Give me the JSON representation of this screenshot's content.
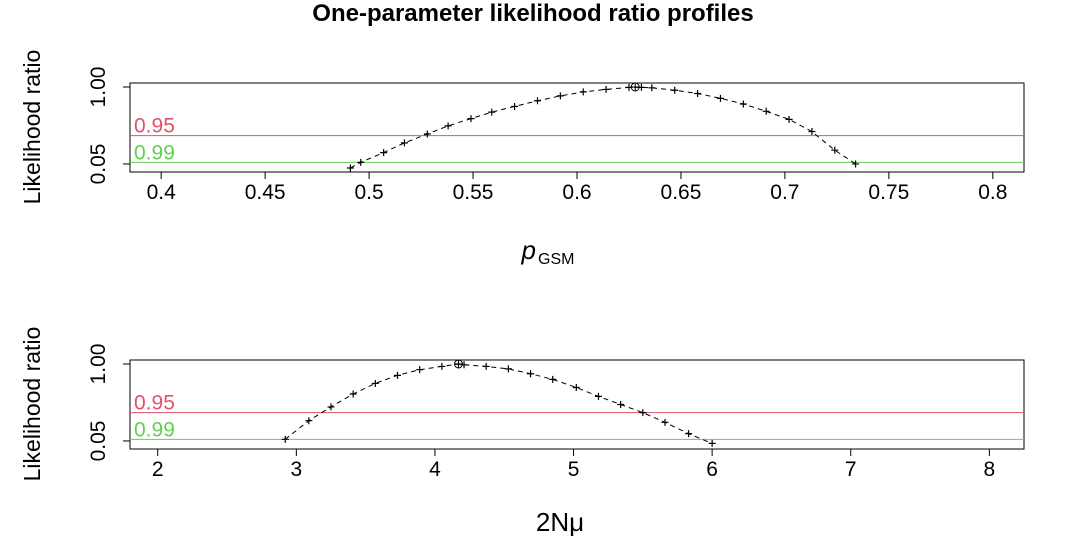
{
  "colors": {
    "level95": "#DF536B",
    "level99": "#61D04F",
    "curve": "#000000"
  },
  "chart_data": [
    {
      "type": "line",
      "title": "One-parameter likelihood ratio profiles",
      "xlabel_main": "p",
      "xlabel_sub": "GSM",
      "ylabel": "Likelihood ratio",
      "xlim": [
        0.385,
        0.815
      ],
      "ylim": [
        0,
        1
      ],
      "x_ticks": [
        0.4,
        0.45,
        0.5,
        0.55,
        0.6,
        0.65,
        0.7,
        0.75,
        0.8
      ],
      "x_tick_labels": [
        "0.4",
        "0.45",
        "0.5",
        "0.55",
        "0.6",
        "0.65",
        "0.7",
        "0.75",
        "0.8"
      ],
      "y_ticks": [
        0.05,
        1.0
      ],
      "y_tick_labels": [
        "0.05",
        "1.00"
      ],
      "levels": [
        {
          "label": "0.95",
          "value": 0.4,
          "color": "#DF536B"
        },
        {
          "label": "0.99",
          "value": 0.07,
          "color": "#61D04F"
        }
      ],
      "mle": {
        "x": 0.628,
        "y": 1.0
      },
      "x": [
        0.491,
        0.496,
        0.507,
        0.517,
        0.528,
        0.538,
        0.549,
        0.559,
        0.57,
        0.581,
        0.592,
        0.603,
        0.614,
        0.625,
        0.631,
        0.636,
        0.647,
        0.658,
        0.669,
        0.68,
        0.691,
        0.702,
        0.713,
        0.724,
        0.734
      ],
      "y": [
        0.0,
        0.07,
        0.19,
        0.31,
        0.42,
        0.52,
        0.61,
        0.69,
        0.76,
        0.83,
        0.89,
        0.94,
        0.97,
        0.995,
        0.995,
        0.99,
        0.96,
        0.92,
        0.86,
        0.79,
        0.7,
        0.6,
        0.45,
        0.22,
        0.05
      ]
    },
    {
      "type": "line",
      "xlabel_main": "2Nμ",
      "ylabel": "Likelihood ratio",
      "xlim": [
        1.8,
        8.25
      ],
      "ylim": [
        0,
        1
      ],
      "x_ticks": [
        2,
        3,
        4,
        5,
        6,
        7,
        8
      ],
      "x_tick_labels": [
        "2",
        "3",
        "4",
        "5",
        "6",
        "7",
        "8"
      ],
      "y_ticks": [
        0.05,
        1.0
      ],
      "y_tick_labels": [
        "0.05",
        "1.00"
      ],
      "levels": [
        {
          "label": "0.95",
          "value": 0.4,
          "color": "#DF536B"
        },
        {
          "label": "0.99",
          "value": 0.07,
          "color": "#61D04F"
        }
      ],
      "mle": {
        "x": 4.17,
        "y": 1.0
      },
      "x": [
        2.92,
        3.09,
        3.25,
        3.41,
        3.57,
        3.73,
        3.89,
        4.05,
        4.17,
        4.21,
        4.37,
        4.53,
        4.69,
        4.85,
        5.02,
        5.18,
        5.34,
        5.5,
        5.66,
        5.83,
        6.0
      ],
      "y": [
        0.07,
        0.3,
        0.47,
        0.63,
        0.76,
        0.86,
        0.93,
        0.97,
        1.0,
        0.99,
        0.97,
        0.94,
        0.88,
        0.81,
        0.71,
        0.6,
        0.5,
        0.4,
        0.28,
        0.14,
        0.02
      ]
    }
  ]
}
